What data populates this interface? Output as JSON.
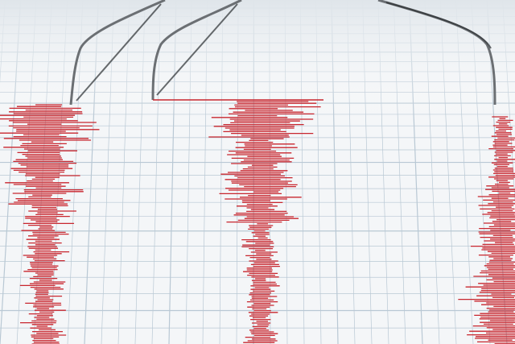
{
  "colors": {
    "paper": "#f4f6f8",
    "grid": "#b9c8d4",
    "trace": "#c8262e",
    "needle": "#6b6f73"
  },
  "traces": [
    {
      "id": "left",
      "amplitude_profile": "strong-top"
    },
    {
      "id": "center",
      "amplitude_profile": "strong-top"
    },
    {
      "id": "right",
      "amplitude_profile": "growing",
      "partial": true
    }
  ]
}
